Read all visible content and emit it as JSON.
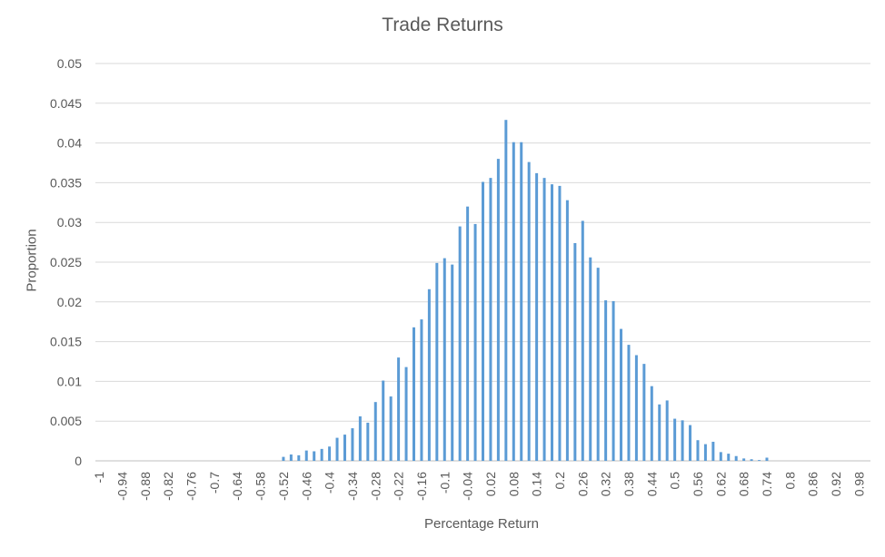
{
  "chart_data": {
    "type": "bar",
    "title": "Trade Returns",
    "xlabel": "Percentage Return",
    "ylabel": "Proportion",
    "ylim": [
      0,
      0.05
    ],
    "yticks": [
      "0",
      "0.005",
      "0.01",
      "0.015",
      "0.02",
      "0.025",
      "0.03",
      "0.035",
      "0.04",
      "0.045",
      "0.05"
    ],
    "grid": true,
    "legend": "none",
    "bar_color": "#5b9bd5",
    "categories": [
      "-1",
      "-0.98",
      "-0.96",
      "-0.94",
      "-0.92",
      "-0.9",
      "-0.88",
      "-0.86",
      "-0.84",
      "-0.82",
      "-0.8",
      "-0.78",
      "-0.76",
      "-0.74",
      "-0.72",
      "-0.7",
      "-0.68",
      "-0.66",
      "-0.64",
      "-0.62",
      "-0.6",
      "-0.58",
      "-0.56",
      "-0.54",
      "-0.52",
      "-0.5",
      "-0.48",
      "-0.46",
      "-0.44",
      "-0.42",
      "-0.4",
      "-0.38",
      "-0.36",
      "-0.34",
      "-0.32",
      "-0.3",
      "-0.28",
      "-0.26",
      "-0.24",
      "-0.22",
      "-0.2",
      "-0.18",
      "-0.16",
      "-0.14",
      "-0.12",
      "-0.1",
      "-0.08",
      "-0.06",
      "-0.04",
      "-0.02",
      "0",
      "0.02",
      "0.04",
      "0.06",
      "0.08",
      "0.1",
      "0.12",
      "0.14",
      "0.16",
      "0.18",
      "0.2",
      "0.22",
      "0.24",
      "0.26",
      "0.28",
      "0.3",
      "0.32",
      "0.34",
      "0.36",
      "0.38",
      "0.4",
      "0.42",
      "0.44",
      "0.46",
      "0.48",
      "0.5",
      "0.52",
      "0.54",
      "0.56",
      "0.58",
      "0.6",
      "0.62",
      "0.64",
      "0.66",
      "0.68",
      "0.7",
      "0.72",
      "0.74",
      "0.76",
      "0.78",
      "0.8",
      "0.82",
      "0.84",
      "0.86",
      "0.88",
      "0.9",
      "0.92",
      "0.94",
      "0.96",
      "0.98",
      "1"
    ],
    "tick_labels": [
      "-1",
      "-0.94",
      "-0.88",
      "-0.82",
      "-0.76",
      "-0.7",
      "-0.64",
      "-0.58",
      "-0.52",
      "-0.46",
      "-0.4",
      "-0.34",
      "-0.28",
      "-0.22",
      "-0.16",
      "-0.1",
      "-0.04",
      "0.02",
      "0.08",
      "0.14",
      "0.2",
      "0.26",
      "0.32",
      "0.38",
      "0.44",
      "0.5",
      "0.56",
      "0.62",
      "0.68",
      "0.74",
      "0.8",
      "0.86",
      "0.92",
      "0.98"
    ],
    "values": [
      0,
      0,
      0,
      0,
      0,
      0,
      0,
      0,
      0,
      0,
      0,
      0,
      0,
      0,
      0,
      0,
      0,
      0,
      0,
      0,
      0,
      0,
      0,
      0,
      0.0005,
      0.0008,
      0.0007,
      0.0013,
      0.0012,
      0.0015,
      0.0018,
      0.0029,
      0.0033,
      0.0041,
      0.0056,
      0.0048,
      0.0074,
      0.0101,
      0.0081,
      0.013,
      0.0118,
      0.0168,
      0.0178,
      0.0216,
      0.0249,
      0.0255,
      0.0247,
      0.0295,
      0.032,
      0.0298,
      0.0351,
      0.0356,
      0.038,
      0.0429,
      0.0401,
      0.0401,
      0.0376,
      0.0362,
      0.0356,
      0.0348,
      0.0346,
      0.0328,
      0.0274,
      0.0302,
      0.0256,
      0.0243,
      0.0202,
      0.0201,
      0.0166,
      0.0146,
      0.0133,
      0.0122,
      0.0094,
      0.0071,
      0.0076,
      0.0053,
      0.0051,
      0.0045,
      0.0026,
      0.0021,
      0.0024,
      0.0011,
      0.0009,
      0.0006,
      0.0003,
      0.0002,
      0.0001,
      0.0004,
      0,
      0,
      0,
      0,
      0,
      0,
      0,
      0,
      0,
      0,
      0,
      0,
      0
    ]
  }
}
